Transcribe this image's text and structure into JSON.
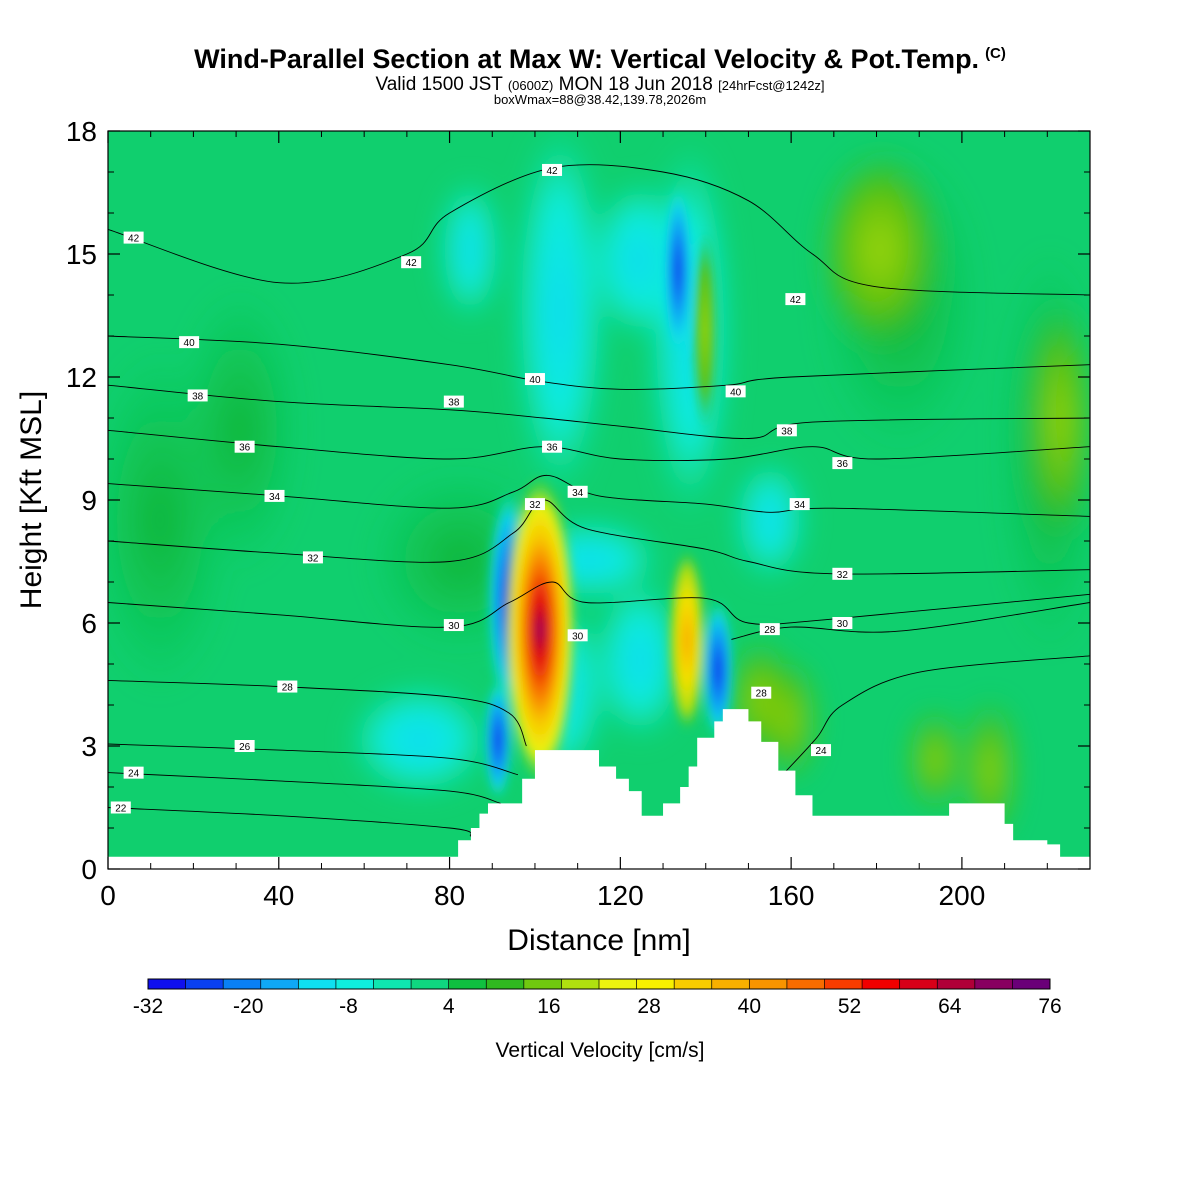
{
  "header": {
    "title": "Wind-Parallel Section at Max W: Vertical Velocity & Pot.Temp.",
    "title_suffix": "(C)",
    "valid_prefix": "Valid 1500 JST",
    "valid_utc": "(0600Z)",
    "valid_day": "MON 18 Jun 2018",
    "forecast": "[24hrFcst@1242z]",
    "box_info": "boxWmax=88@38.42,139.78,2026m"
  },
  "chart_data": {
    "type": "heatmap",
    "xlabel": "Distance [nm]",
    "ylabel": "Height [Kft MSL]",
    "xlim": [
      0,
      230
    ],
    "ylim": [
      0,
      18
    ],
    "xticks": [
      0,
      40,
      80,
      120,
      160,
      200
    ],
    "yticks": [
      0,
      3,
      6,
      9,
      12,
      15,
      18
    ],
    "colorbar": {
      "label": "Vertical Velocity [cm/s]",
      "ticks": [
        -32,
        -20,
        -8,
        4,
        16,
        28,
        40,
        52,
        64,
        76
      ],
      "colors": [
        "#1010ee",
        "#0a40f0",
        "#0a80f5",
        "#10a8f5",
        "#10e0f0",
        "#10eede",
        "#10e6b0",
        "#10d680",
        "#10c040",
        "#30b820",
        "#70c810",
        "#b0e010",
        "#ecf410",
        "#f8f000",
        "#f8cc00",
        "#f8b000",
        "#f89400",
        "#f86c00",
        "#f83c00",
        "#f00000",
        "#d80018",
        "#b00038",
        "#880060",
        "#6a0078"
      ]
    },
    "terrain": [
      [
        0,
        0.3
      ],
      [
        80,
        0.3
      ],
      [
        82,
        0.7
      ],
      [
        85,
        1
      ],
      [
        87,
        1.35
      ],
      [
        89,
        1.6
      ],
      [
        91,
        1.6
      ],
      [
        93,
        1.6
      ],
      [
        97,
        2.2
      ],
      [
        100,
        2.9
      ],
      [
        108,
        2.9
      ],
      [
        115,
        2.5
      ],
      [
        119,
        2.2
      ],
      [
        122,
        1.9
      ],
      [
        125,
        1.3
      ],
      [
        128,
        1.3
      ],
      [
        130,
        1.6
      ],
      [
        132,
        1.6
      ],
      [
        134,
        2
      ],
      [
        136,
        2.5
      ],
      [
        138,
        3.2
      ],
      [
        142,
        3.6
      ],
      [
        144,
        3.9
      ],
      [
        150,
        3.6
      ],
      [
        153,
        3.1
      ],
      [
        157,
        2.4
      ],
      [
        161,
        1.8
      ],
      [
        165,
        1.3
      ],
      [
        195,
        1.3
      ],
      [
        197,
        1.6
      ],
      [
        207,
        1.6
      ],
      [
        210,
        1.1
      ],
      [
        212,
        0.7
      ],
      [
        216,
        0.7
      ],
      [
        220,
        0.6
      ],
      [
        223,
        0.3
      ],
      [
        230,
        0.3
      ]
    ],
    "features": [
      {
        "type": "updraft",
        "x": 101,
        "z": 6.5,
        "w_cm_s": 88
      },
      {
        "type": "downdraft",
        "x": 94,
        "z": 7,
        "w_cm_s": -28
      },
      {
        "type": "updraft",
        "x": 135,
        "z": 6,
        "w_cm_s": 30
      },
      {
        "type": "downdraft",
        "x": 143,
        "z": 4.5,
        "w_cm_s": -25
      },
      {
        "type": "downdraft",
        "x": 133,
        "z": 14.8,
        "w_cm_s": -22
      }
    ],
    "theta_contours": [
      {
        "label": "22",
        "points": [
          [
            0,
            1.5
          ],
          [
            40,
            1.3
          ],
          [
            80,
            1.0
          ],
          [
            85,
            0.8
          ]
        ],
        "labels_at": [
          [
            3,
            1.5
          ]
        ]
      },
      {
        "label": "24",
        "points": [
          [
            0,
            2.35
          ],
          [
            40,
            2.15
          ],
          [
            80,
            1.9
          ],
          [
            92,
            1.6
          ]
        ],
        "labels_at": [
          [
            6,
            2.35
          ]
        ]
      },
      {
        "label": "26",
        "points": [
          [
            0,
            3.05
          ],
          [
            40,
            2.9
          ],
          [
            80,
            2.7
          ],
          [
            96,
            2.3
          ]
        ],
        "labels_at": [
          [
            32,
            3.0
          ]
        ]
      },
      {
        "label": "28",
        "points": [
          [
            0,
            4.6
          ],
          [
            40,
            4.45
          ],
          [
            80,
            4.2
          ],
          [
            94,
            3.8
          ],
          [
            98,
            3.0
          ]
        ],
        "labels_at": [
          [
            42,
            4.45
          ]
        ]
      },
      {
        "label": "28",
        "points": [
          [
            146,
            5.6
          ],
          [
            160,
            5.9
          ],
          [
            185,
            5.8
          ],
          [
            230,
            6.5
          ]
        ],
        "labels_at": [
          [
            155,
            5.85
          ],
          [
            153,
            4.3
          ]
        ]
      },
      {
        "label": "24",
        "points": [
          [
            158,
            2.3
          ],
          [
            166,
            3.2
          ],
          [
            172,
            4.0
          ],
          [
            190,
            4.8
          ],
          [
            230,
            5.2
          ]
        ],
        "labels_at": [
          [
            167,
            2.9
          ]
        ]
      },
      {
        "label": "30",
        "points": [
          [
            0,
            6.5
          ],
          [
            40,
            6.2
          ],
          [
            80,
            5.9
          ],
          [
            94,
            6.5
          ],
          [
            104,
            7.0
          ],
          [
            112,
            6.5
          ],
          [
            140,
            6.6
          ],
          [
            150,
            6.0
          ],
          [
            170,
            6.1
          ],
          [
            230,
            6.7
          ]
        ],
        "labels_at": [
          [
            81,
            5.95
          ],
          [
            110,
            5.7
          ],
          [
            172,
            6.0
          ]
        ]
      },
      {
        "label": "32",
        "points": [
          [
            0,
            8.0
          ],
          [
            40,
            7.7
          ],
          [
            80,
            7.5
          ],
          [
            95,
            8.2
          ],
          [
            102,
            9.0
          ],
          [
            112,
            8.3
          ],
          [
            140,
            7.8
          ],
          [
            150,
            7.5
          ],
          [
            170,
            7.2
          ],
          [
            230,
            7.3
          ]
        ],
        "labels_at": [
          [
            48,
            7.6
          ],
          [
            100,
            8.9
          ],
          [
            172,
            7.2
          ]
        ]
      },
      {
        "label": "34",
        "points": [
          [
            0,
            9.4
          ],
          [
            40,
            9.1
          ],
          [
            80,
            8.8
          ],
          [
            95,
            9.2
          ],
          [
            103,
            9.6
          ],
          [
            115,
            9.1
          ],
          [
            140,
            8.9
          ],
          [
            155,
            8.7
          ],
          [
            170,
            8.8
          ],
          [
            230,
            8.6
          ]
        ],
        "labels_at": [
          [
            39,
            9.1
          ],
          [
            110,
            9.2
          ],
          [
            162,
            8.9
          ]
        ]
      },
      {
        "label": "36",
        "points": [
          [
            0,
            10.7
          ],
          [
            40,
            10.3
          ],
          [
            80,
            10.0
          ],
          [
            102,
            10.3
          ],
          [
            120,
            10.0
          ],
          [
            145,
            10.0
          ],
          [
            165,
            10.3
          ],
          [
            180,
            10.0
          ],
          [
            230,
            10.3
          ]
        ],
        "labels_at": [
          [
            32,
            10.3
          ],
          [
            104,
            10.3
          ],
          [
            172,
            9.9
          ]
        ]
      },
      {
        "label": "38",
        "points": [
          [
            0,
            11.8
          ],
          [
            40,
            11.4
          ],
          [
            80,
            11.2
          ],
          [
            102,
            11.0
          ],
          [
            120,
            10.8
          ],
          [
            150,
            10.5
          ],
          [
            165,
            10.9
          ],
          [
            230,
            11.0
          ]
        ],
        "labels_at": [
          [
            21,
            11.55
          ],
          [
            81,
            11.4
          ],
          [
            159,
            10.7
          ]
        ]
      },
      {
        "label": "40",
        "points": [
          [
            0,
            13.0
          ],
          [
            40,
            12.8
          ],
          [
            80,
            12.3
          ],
          [
            101,
            11.9
          ],
          [
            120,
            11.7
          ],
          [
            145,
            11.8
          ],
          [
            160,
            12.0
          ],
          [
            230,
            12.3
          ]
        ],
        "labels_at": [
          [
            19,
            12.85
          ],
          [
            100,
            11.95
          ],
          [
            147,
            11.65
          ]
        ]
      },
      {
        "label": "42",
        "points": [
          [
            0,
            15.6
          ],
          [
            40,
            14.3
          ],
          [
            70,
            15.0
          ],
          [
            80,
            16.0
          ],
          [
            104,
            17.1
          ],
          [
            130,
            17.0
          ],
          [
            150,
            16.3
          ],
          [
            165,
            15.0
          ],
          [
            180,
            14.2
          ],
          [
            230,
            14.0
          ]
        ],
        "labels_at": [
          [
            6,
            15.4
          ],
          [
            71,
            14.8
          ],
          [
            104,
            17.05
          ],
          [
            161,
            13.9
          ]
        ]
      }
    ]
  }
}
